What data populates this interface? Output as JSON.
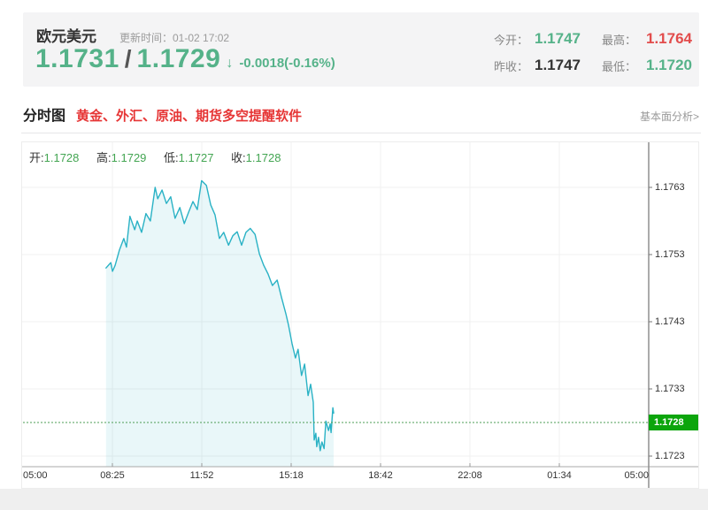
{
  "header": {
    "symbol": "欧元美元",
    "update_time": "更新时间：01-02 17:02",
    "bid": "1.1731",
    "slash": "/",
    "ask": "1.1729",
    "arrow": "↓",
    "change": "-0.0018(-0.16%)",
    "stats": [
      {
        "label": "今开：",
        "value": "1.1747",
        "state": "up"
      },
      {
        "label": "最高：",
        "value": "1.1764",
        "state": "down"
      },
      {
        "label": "昨收：",
        "value": "1.1747",
        "state": "neutral"
      },
      {
        "label": "最低：",
        "value": "1.1720",
        "state": "up"
      }
    ]
  },
  "tabs": {
    "intraday": "分时图",
    "promo": "黄金、外汇、原油、期货多空提醒软件",
    "fundamental_link": "基本面分析>"
  },
  "theme": {
    "up_green": "#55b289",
    "down_red": "#e24c4c",
    "neutral_dark": "#333333",
    "promo_red": "#e63535",
    "muted_gray": "#999999"
  },
  "chart_data": {
    "type": "line",
    "title": "欧元美元分时图",
    "ohlc": [
      {
        "label": "开:",
        "value": "1.1728"
      },
      {
        "label": "高:",
        "value": "1.1729"
      },
      {
        "label": "低:",
        "value": "1.1727"
      },
      {
        "label": "收:",
        "value": "1.1728"
      }
    ],
    "x_ticks": [
      "05:00",
      "08:25",
      "11:52",
      "15:18",
      "18:42",
      "22:08",
      "01:34",
      "05:00"
    ],
    "x_axis_start": "05:00",
    "x_span_minutes": 1440,
    "y_ticks": [
      1.1763,
      1.1753,
      1.1743,
      1.1733,
      1.1723
    ],
    "ylim": [
      1.1721,
      1.177
    ],
    "grid": true,
    "legend_position": "none",
    "current_price": 1.1728,
    "current_price_label": "1.1728",
    "colors": {
      "line": "#2ab2c5",
      "fill": "rgba(42,178,197,0.10)",
      "current_price_line": "#4d9e55",
      "badge_bg": "#0ca50c",
      "badge_text": "#ffffff",
      "ohlc_value_green": "#43a552",
      "gridline": "#f0f0f0",
      "axis": "#8f8f8f"
    },
    "series": [
      {
        "name": "price",
        "points": [
          [
            "08:11",
            1.1751
          ],
          [
            "08:22",
            1.17518
          ],
          [
            "08:26",
            1.17505
          ],
          [
            "08:32",
            1.17514
          ],
          [
            "08:42",
            1.17537
          ],
          [
            "08:52",
            1.17554
          ],
          [
            "08:58",
            1.17541
          ],
          [
            "09:06",
            1.17587
          ],
          [
            "09:17",
            1.17567
          ],
          [
            "09:23",
            1.1758
          ],
          [
            "09:33",
            1.17563
          ],
          [
            "09:43",
            1.17591
          ],
          [
            "09:53",
            1.1758
          ],
          [
            "10:04",
            1.1763
          ],
          [
            "10:10",
            1.17613
          ],
          [
            "10:20",
            1.17626
          ],
          [
            "10:30",
            1.17606
          ],
          [
            "10:40",
            1.17616
          ],
          [
            "10:50",
            1.17584
          ],
          [
            "11:01",
            1.176
          ],
          [
            "11:11",
            1.17576
          ],
          [
            "11:21",
            1.17593
          ],
          [
            "11:31",
            1.17609
          ],
          [
            "11:41",
            1.17597
          ],
          [
            "11:51",
            1.1764
          ],
          [
            "12:02",
            1.17633
          ],
          [
            "12:12",
            1.17604
          ],
          [
            "12:22",
            1.17589
          ],
          [
            "12:32",
            1.17554
          ],
          [
            "12:42",
            1.17563
          ],
          [
            "12:53",
            1.17544
          ],
          [
            "13:03",
            1.17558
          ],
          [
            "13:13",
            1.17564
          ],
          [
            "13:23",
            1.17544
          ],
          [
            "13:33",
            1.17563
          ],
          [
            "13:43",
            1.17569
          ],
          [
            "13:54",
            1.1756
          ],
          [
            "14:04",
            1.17531
          ],
          [
            "14:14",
            1.17514
          ],
          [
            "14:24",
            1.17501
          ],
          [
            "14:34",
            1.17484
          ],
          [
            "14:45",
            1.17492
          ],
          [
            "14:55",
            1.17466
          ],
          [
            "15:05",
            1.17442
          ],
          [
            "15:11",
            1.17425
          ],
          [
            "15:19",
            1.17398
          ],
          [
            "15:27",
            1.17376
          ],
          [
            "15:33",
            1.17389
          ],
          [
            "15:41",
            1.1735
          ],
          [
            "15:48",
            1.17367
          ],
          [
            "15:56",
            1.1732
          ],
          [
            "16:02",
            1.17337
          ],
          [
            "16:08",
            1.1731
          ],
          [
            "16:10",
            1.17254
          ],
          [
            "16:14",
            1.17264
          ],
          [
            "16:16",
            1.17244
          ],
          [
            "16:20",
            1.17258
          ],
          [
            "16:24",
            1.17238
          ],
          [
            "16:28",
            1.17251
          ],
          [
            "16:33",
            1.17241
          ],
          [
            "16:37",
            1.17282
          ],
          [
            "16:43",
            1.17268
          ],
          [
            "16:47",
            1.17278
          ],
          [
            "16:49",
            1.17265
          ],
          [
            "16:53",
            1.17302
          ],
          [
            "16:55",
            1.17294
          ]
        ]
      }
    ]
  }
}
